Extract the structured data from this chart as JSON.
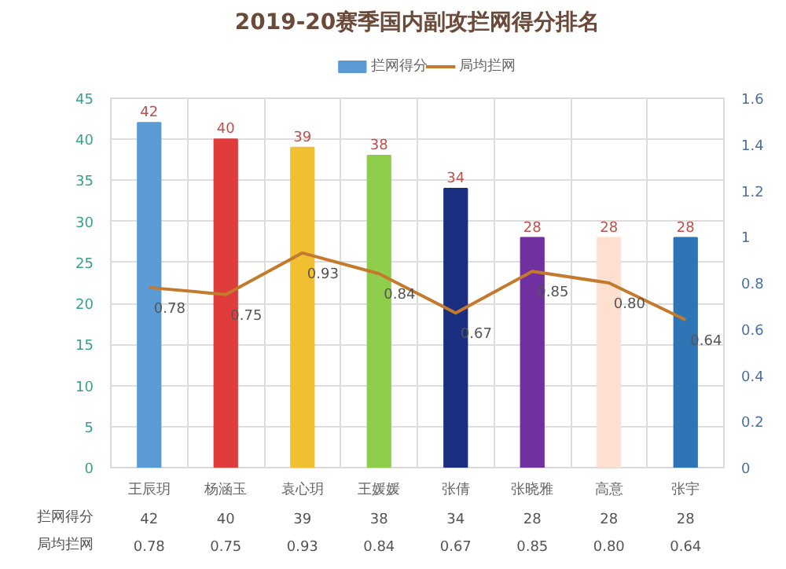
{
  "chart_data": {
    "type": "bar",
    "title": "2019-20赛季国内副攻拦网得分排名",
    "categories": [
      "王辰玥",
      "杨涵玉",
      "袁心玥",
      "王媛媛",
      "张倩",
      "张晓雅",
      "高意",
      "张宇"
    ],
    "series": [
      {
        "name": "拦网得分",
        "color": "#5b9bd5",
        "colors": [
          "#5b9bd5",
          "#e03c3c",
          "#f0c030",
          "#8fce4a",
          "#1a2f80",
          "#7030a0",
          "#fde0d0",
          "#2e75b6"
        ],
        "values": [
          42,
          40,
          39,
          38,
          34,
          28,
          28,
          28
        ],
        "value_labels": [
          "42",
          "40",
          "39",
          "38",
          "34",
          "28",
          "28",
          "28"
        ]
      },
      {
        "name": "局均拦网",
        "type": "line",
        "axis": "y2",
        "color": "#c47a2c",
        "values": [
          0.78,
          0.75,
          0.93,
          0.84,
          0.67,
          0.85,
          0.8,
          0.64
        ],
        "value_labels": [
          "0.78",
          "0.75",
          "0.93",
          "0.84",
          "0.67",
          "0.85",
          "0.80",
          "0.64"
        ]
      }
    ],
    "ylim": [
      0,
      45
    ],
    "yticks": [
      0,
      5,
      10,
      15,
      20,
      25,
      30,
      35,
      40,
      45
    ],
    "y2lim": [
      0,
      1.6
    ],
    "y2ticks": [
      0,
      0.2,
      0.4,
      0.6,
      0.8,
      1,
      1.2,
      1.4,
      1.6
    ],
    "data_labels": true,
    "grid": true,
    "legend": "top",
    "marker": "none",
    "line_style": "solid"
  }
}
